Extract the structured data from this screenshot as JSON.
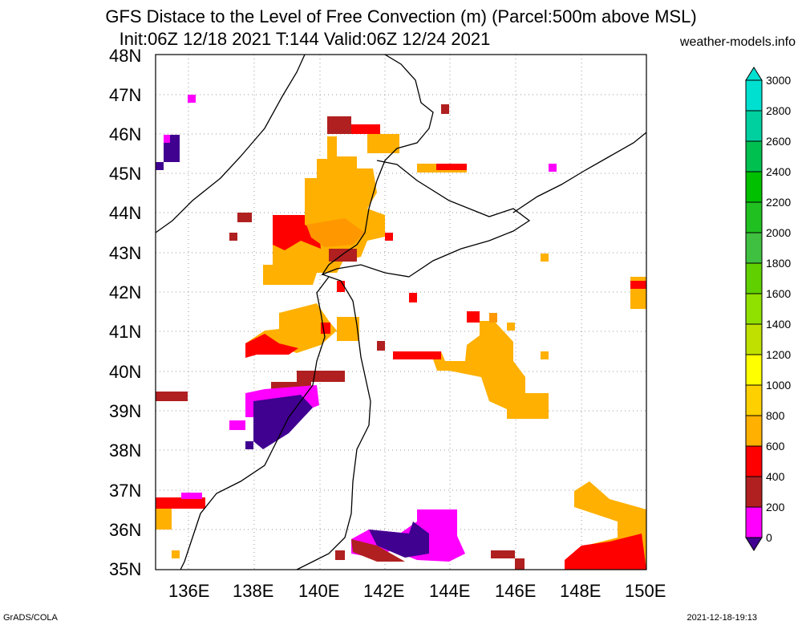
{
  "title": {
    "line1": "GFS Distace to the Level of Free Convection (m) (Parcel:500m above MSL)",
    "line2": "Init:06Z 12/18 2021 T:144 Valid:06Z 12/24 2021",
    "site": "weather-models.info"
  },
  "footer": {
    "left": "GrADS/COLA",
    "right": "2021-12-18-19:13"
  },
  "map": {
    "lat_labels": [
      "48N",
      "47N",
      "46N",
      "45N",
      "44N",
      "43N",
      "42N",
      "41N",
      "40N",
      "39N",
      "38N",
      "37N",
      "36N",
      "35N"
    ],
    "lon_labels": [
      "136E",
      "138E",
      "140E",
      "142E",
      "144E",
      "146E",
      "148E",
      "150E"
    ],
    "extent": {
      "lon_min": 135,
      "lon_max": 150,
      "lat_min": 35,
      "lat_max": 48
    }
  },
  "colorbar": {
    "labels": [
      "3000",
      "2800",
      "2600",
      "2400",
      "2200",
      "2000",
      "1800",
      "1600",
      "1400",
      "1200",
      "1000",
      "800",
      "600",
      "400",
      "200",
      "0"
    ],
    "colors": [
      "#00e0d0",
      "#00d0a0",
      "#00c050",
      "#00c000",
      "#20c020",
      "#40c040",
      "#60d000",
      "#90e000",
      "#c0e000",
      "#ffff00",
      "#ffd000",
      "#ffb000",
      "#ff9800",
      "#ff0000",
      "#b02020",
      "#ff00ff",
      "#400090"
    ]
  }
}
